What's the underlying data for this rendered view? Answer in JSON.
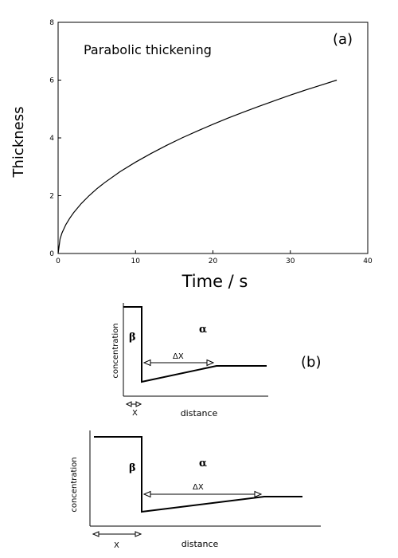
{
  "chart_data": {
    "type": "line",
    "title": "Parabolic thickening",
    "panel_label": "(a)",
    "xlabel": "Time / s",
    "ylabel": "Thickness",
    "xlim": [
      0,
      40
    ],
    "ylim": [
      0,
      8
    ],
    "x_ticks": [
      0,
      10,
      20,
      30,
      40
    ],
    "y_ticks": [
      0,
      2,
      4,
      6,
      8
    ],
    "x_tick_labels": [
      "0",
      "10",
      "20",
      "30",
      "40"
    ],
    "y_tick_labels": [
      "0",
      "2",
      "4",
      "6",
      "8"
    ],
    "grid": false,
    "series": [
      {
        "values_note": "",
        "x": [
          0,
          0.25,
          0.5,
          1,
          1.5,
          2,
          3,
          4,
          5,
          6,
          8,
          10,
          12,
          14,
          16,
          18,
          20,
          22,
          24,
          26,
          28,
          30,
          32,
          34,
          36
        ],
        "y": [
          0,
          0.5,
          0.71,
          1.0,
          1.22,
          1.41,
          1.73,
          2.0,
          2.24,
          2.45,
          2.83,
          3.16,
          3.46,
          3.74,
          4.0,
          4.24,
          4.47,
          4.69,
          4.9,
          5.1,
          5.29,
          5.48,
          5.66,
          5.83,
          6.0
        ]
      }
    ]
  },
  "diagram": {
    "panel_label": "(b)",
    "top": {
      "ylabel": "concentration",
      "xlabel": "distance",
      "beta": "β",
      "alpha": "α",
      "delta_x": "ΔX",
      "x_label": "X"
    },
    "bottom": {
      "ylabel": "concentration",
      "xlabel": "distance",
      "beta": "β",
      "alpha": "α",
      "delta_x": "ΔX",
      "x_label": "X"
    }
  }
}
